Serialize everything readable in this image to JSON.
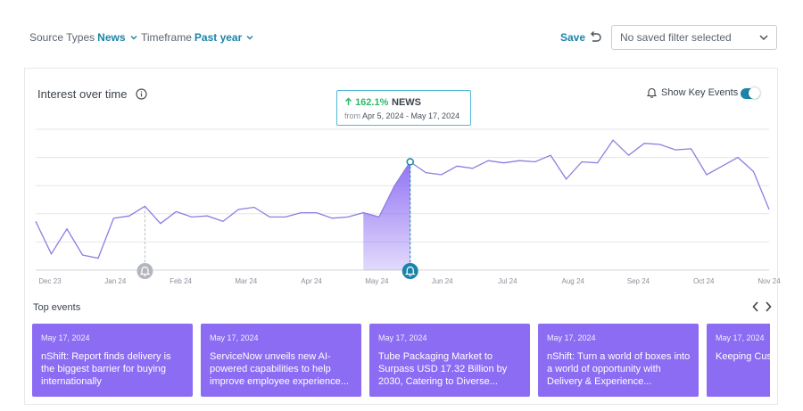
{
  "filters": {
    "source_label": "Source Types",
    "source_value": "News",
    "timeframe_label": "Timeframe",
    "timeframe_value": "Past year",
    "save_label": "Save",
    "saved_filter_placeholder": "No saved filter selected"
  },
  "card": {
    "title": "Interest over time",
    "key_events_label": "Show Key Events",
    "key_events_on": true
  },
  "tooltip": {
    "pct": "162.1%",
    "series": "NEWS",
    "from_label": "from",
    "range": "Apr 5, 2024 - May 17, 2024"
  },
  "colors": {
    "line": "#8b7fe0",
    "area": "#8c6cf3",
    "accent": "#1b84a8",
    "event_card": "#8b6cf3",
    "up": "#2eb86c"
  },
  "chart_data": {
    "type": "line",
    "x_ticks": [
      "Dec 23",
      "Jan 24",
      "Feb 24",
      "Mar 24",
      "Apr 24",
      "May 24",
      "Jun 24",
      "Jul 24",
      "Aug 24",
      "Sep 24",
      "Oct 24",
      "Nov 24"
    ],
    "values": [
      45,
      15,
      38,
      14,
      11,
      48,
      50,
      59,
      43,
      54,
      49,
      50,
      45,
      56,
      58,
      49,
      49,
      53,
      53,
      48,
      49,
      53,
      49,
      78,
      100,
      90,
      88,
      96,
      94,
      101,
      99,
      101,
      100,
      106,
      84,
      100,
      99,
      120,
      106,
      117,
      116,
      111,
      112,
      88,
      96,
      104,
      91,
      56
    ],
    "ylim": [
      0,
      130
    ],
    "highlight_range": [
      21,
      24
    ],
    "key_event_indices": [
      7,
      24
    ]
  },
  "top_events": {
    "label": "Top events",
    "items": [
      {
        "date": "May 17, 2024",
        "text": "nShift: Report finds delivery is the biggest barrier for buying internationally"
      },
      {
        "date": "May 17, 2024",
        "text": "ServiceNow unveils new AI-powered capabilities to help improve employee experience..."
      },
      {
        "date": "May 17, 2024",
        "text": "Tube Packaging Market to Surpass USD 17.32 Billion by 2030, Catering to Diverse..."
      },
      {
        "date": "May 17, 2024",
        "text": "nShift: Turn a world of boxes into a world of opportunity with Delivery & Experience..."
      },
      {
        "date": "May 17, 2024",
        "text": "Keeping Customer Se..."
      }
    ]
  }
}
